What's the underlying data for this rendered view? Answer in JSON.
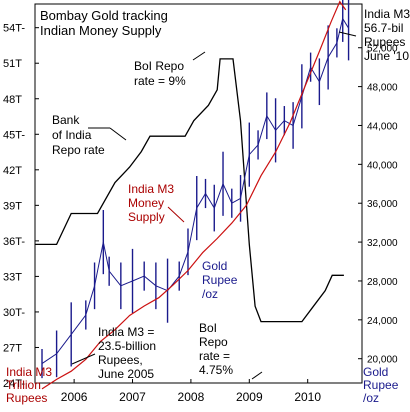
{
  "colors": {
    "m3": "#cc1111",
    "gold": "#1a1a8c",
    "repo": "#000000",
    "label_red": "#aa0000",
    "label_blue": "#1a1a8c"
  },
  "chart_data": {
    "type": "line",
    "title": "Bombay Gold tracking\nIndian Money Supply",
    "left_axis": {
      "unit_label": "India M3\nTrillion\nRupees",
      "ticks": [
        "24T-",
        "27T",
        "30T-",
        "33T",
        "36T-",
        "39T",
        "42T",
        "45T-",
        "48T",
        "51T",
        "54T-"
      ],
      "values": [
        24,
        27,
        30,
        33,
        36,
        39,
        42,
        45,
        48,
        51,
        54
      ],
      "range": [
        24,
        56
      ]
    },
    "right_axis": {
      "unit_label": "Gold\nRupee\n/oz",
      "ticks": [
        "20,000",
        "24,000",
        "28,000",
        "32,000",
        "36,000",
        "40,000",
        "44,000",
        "48,000",
        "52,000"
      ],
      "values": [
        20000,
        24000,
        28000,
        32000,
        36000,
        40000,
        44000,
        48000,
        52000
      ],
      "range": [
        17500,
        56500
      ]
    },
    "x_axis": {
      "ticks": [
        "2006",
        "2007",
        "2008",
        "2009",
        "2010"
      ],
      "positions": [
        2006.0,
        2007.0,
        2008.0,
        2009.0,
        2010.0
      ],
      "range": [
        2005.33,
        2010.93
      ]
    },
    "repo_scale": {
      "min": 4.0,
      "max": 9.5
    },
    "series": [
      {
        "name": "India M3 Money Supply",
        "axis": "left",
        "points": [
          [
            2005.45,
            23.5
          ],
          [
            2005.7,
            24.3
          ],
          [
            2005.95,
            25.0
          ],
          [
            2006.2,
            26.0
          ],
          [
            2006.45,
            27.5
          ],
          [
            2006.7,
            28.5
          ],
          [
            2006.95,
            29.7
          ],
          [
            2007.2,
            30.5
          ],
          [
            2007.45,
            31.2
          ],
          [
            2007.7,
            32.3
          ],
          [
            2007.95,
            33.5
          ],
          [
            2008.2,
            35.0
          ],
          [
            2008.45,
            36.2
          ],
          [
            2008.7,
            37.5
          ],
          [
            2008.95,
            39.0
          ],
          [
            2009.2,
            41.5
          ],
          [
            2009.45,
            43.5
          ],
          [
            2009.7,
            46.0
          ],
          [
            2009.95,
            49.0
          ],
          [
            2010.2,
            52.0
          ],
          [
            2010.4,
            54.5
          ],
          [
            2010.55,
            56.2
          ],
          [
            2010.65,
            55.5
          ]
        ]
      },
      {
        "name": "Gold Rupee /oz",
        "axis": "right",
        "points": [
          [
            2005.45,
            19500
          ],
          [
            2005.7,
            20500
          ],
          [
            2005.95,
            22500
          ],
          [
            2006.2,
            24500
          ],
          [
            2006.35,
            27500
          ],
          [
            2006.5,
            32000
          ],
          [
            2006.6,
            29000
          ],
          [
            2006.8,
            27500
          ],
          [
            2007.0,
            28000
          ],
          [
            2007.2,
            28500
          ],
          [
            2007.4,
            27500
          ],
          [
            2007.6,
            27000
          ],
          [
            2007.8,
            28500
          ],
          [
            2007.95,
            31000
          ],
          [
            2008.1,
            35500
          ],
          [
            2008.25,
            37000
          ],
          [
            2008.4,
            35500
          ],
          [
            2008.55,
            38000
          ],
          [
            2008.7,
            36000
          ],
          [
            2008.85,
            36500
          ],
          [
            2009.0,
            41000
          ],
          [
            2009.15,
            42000
          ],
          [
            2009.3,
            45000
          ],
          [
            2009.45,
            43500
          ],
          [
            2009.6,
            44500
          ],
          [
            2009.75,
            44000
          ],
          [
            2009.9,
            47000
          ],
          [
            2010.05,
            50000
          ],
          [
            2010.2,
            48500
          ],
          [
            2010.35,
            51000
          ],
          [
            2010.5,
            52500
          ],
          [
            2010.6,
            55000
          ],
          [
            2010.7,
            54000
          ]
        ]
      },
      {
        "name": "BoI Repo rate",
        "axis": "none",
        "points": [
          [
            2005.33,
            6.0
          ],
          [
            2005.7,
            6.0
          ],
          [
            2005.95,
            6.5
          ],
          [
            2006.4,
            6.5
          ],
          [
            2006.7,
            7.0
          ],
          [
            2006.95,
            7.25
          ],
          [
            2007.15,
            7.5
          ],
          [
            2007.3,
            7.75
          ],
          [
            2007.9,
            7.75
          ],
          [
            2008.05,
            8.0
          ],
          [
            2008.3,
            8.25
          ],
          [
            2008.45,
            8.5
          ],
          [
            2008.5,
            9.0
          ],
          [
            2008.72,
            9.0
          ],
          [
            2008.85,
            8.0
          ],
          [
            2009.0,
            6.0
          ],
          [
            2009.1,
            5.0
          ],
          [
            2009.2,
            4.75
          ],
          [
            2009.9,
            4.75
          ],
          [
            2010.1,
            5.0
          ],
          [
            2010.3,
            5.25
          ],
          [
            2010.42,
            5.5
          ],
          [
            2010.62,
            5.5
          ]
        ]
      }
    ],
    "annotations": [
      {
        "id": "bank-of-india-repo",
        "text": "Bank\nof India\nRepo rate"
      },
      {
        "id": "boi-repo-9",
        "text": "BoI Repo\nrate = 9%"
      },
      {
        "id": "india-m3-money-supply",
        "text": "India M3\nMoney\nSupply"
      },
      {
        "id": "gold-rupee",
        "text": "Gold\nRupee\n/oz"
      },
      {
        "id": "india-m3-2005",
        "text": "India M3 =\n23.5-billion\nRupees,\nJune 2005"
      },
      {
        "id": "boi-repo-475",
        "text": "BoI\nRepo\nrate =\n4.75%"
      },
      {
        "id": "india-m3-2010",
        "text": "India M3\n56.7-bil\nRupees\nJune '10"
      }
    ]
  }
}
